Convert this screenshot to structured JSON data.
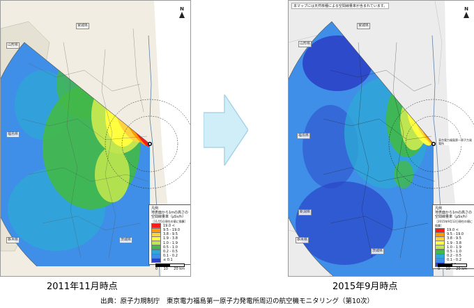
{
  "left_map": {
    "date_label": "2011年11月時点",
    "prefecture_labels": {
      "yamagata": "山形県",
      "miyagi": "宮城県",
      "fukushima": "福島県",
      "ibaraki": "茨城県",
      "tochigi": "栃木県"
    },
    "legend": {
      "title": "凡例",
      "subtitle_1": "地表面から1mの高さの",
      "subtitle_2": "空間線量率（μSv/h）",
      "subtitle_3": "［11月5日現在の値に換算］",
      "rows": [
        {
          "label": "19.0 <",
          "color": "#ff1a1a"
        },
        {
          "label": "9.5 - 19.0",
          "color": "#ff9a00"
        },
        {
          "label": "3.8 - 9.5",
          "color": "#ffd23f"
        },
        {
          "label": "1.9 - 3.8",
          "color": "#ffff40"
        },
        {
          "label": "1.0 - 1.9",
          "color": "#bfe650"
        },
        {
          "label": "0.5 - 1.0",
          "color": "#43b947"
        },
        {
          "label": "0.2 - 0.5",
          "color": "#2ea8d6"
        },
        {
          "label": "0.1 - 0.2",
          "color": "#3f8fe8"
        },
        {
          "label": "≤ 0.1",
          "color": "#2b43c8"
        }
      ],
      "scale_labels": [
        "0",
        "10",
        "20 km"
      ]
    }
  },
  "right_map": {
    "date_label": "2015年9月時点",
    "top_note": "本マップには天然核種による空間線量率が含まれています。",
    "prefecture_labels": {
      "yamagata": "山形県",
      "miyagi": "宮城県",
      "fukushima": "福島県",
      "ibaraki": "茨城県",
      "tochigi": "栃木県",
      "niigata": "新潟県"
    },
    "plant_label": "東京電力福島第一原子力発電所",
    "legend": {
      "title": "凡例",
      "subtitle_1": "地表面から1mの高さの",
      "subtitle_2": "空間線量率（μSv/h）",
      "subtitle_3": "［2015年9月12日現在の値に換算］",
      "rows": [
        {
          "label": "19.0 <",
          "color": "#ff1a1a"
        },
        {
          "label": "9.5 - 19.0",
          "color": "#ff9a00"
        },
        {
          "label": "3.8 - 9.5",
          "color": "#ffd23f"
        },
        {
          "label": "1.9 - 3.8",
          "color": "#ffff40"
        },
        {
          "label": "1.0 - 1.9",
          "color": "#bfe650"
        },
        {
          "label": "0.5 - 1.0",
          "color": "#43b947"
        },
        {
          "label": "0.2 - 0.5",
          "color": "#2ea8d6"
        },
        {
          "label": "0.1 - 0.2",
          "color": "#3f8fe8"
        },
        {
          "label": "≤ 0.1",
          "color": "#2b43c8"
        }
      ],
      "scale_labels": [
        "0",
        "10",
        "20 km"
      ]
    }
  },
  "north_label": "N",
  "caption": "出典：原子力規制庁　東京電力福島第一原子力発電所周辺の航空機モニタリング（第10次）",
  "colors": {
    "arrow_fill": "#cfeef8",
    "arrow_stroke": "#a8d3e6"
  }
}
